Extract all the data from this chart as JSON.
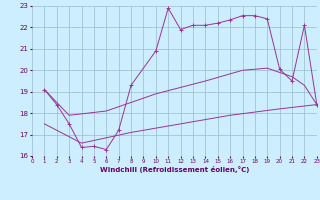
{
  "xlabel": "Windchill (Refroidissement éolien,°C)",
  "xlim": [
    0,
    23
  ],
  "ylim": [
    16,
    23
  ],
  "yticks": [
    16,
    17,
    18,
    19,
    20,
    21,
    22,
    23
  ],
  "xticks": [
    0,
    1,
    2,
    3,
    4,
    5,
    6,
    7,
    8,
    9,
    10,
    11,
    12,
    13,
    14,
    15,
    16,
    17,
    18,
    19,
    20,
    21,
    22,
    23
  ],
  "bg_color": "#cceeff",
  "line_color": "#993399",
  "grid_color": "#99bbcc",
  "line1_x": [
    1,
    2,
    3,
    4,
    5,
    6,
    7,
    8,
    10,
    11,
    12,
    13,
    14,
    15,
    16,
    17,
    18,
    19,
    20,
    21,
    22,
    23
  ],
  "line1_y": [
    19.1,
    18.4,
    17.5,
    16.4,
    16.45,
    16.3,
    17.2,
    19.3,
    20.9,
    22.9,
    21.9,
    22.1,
    22.1,
    22.2,
    22.35,
    22.55,
    22.55,
    22.4,
    20.05,
    19.5,
    22.1,
    18.4
  ],
  "line2_x": [
    1,
    3,
    6,
    10,
    14,
    17,
    19,
    21,
    22,
    23
  ],
  "line2_y": [
    19.1,
    17.9,
    18.1,
    18.9,
    19.5,
    20.0,
    20.1,
    19.7,
    19.3,
    18.4
  ],
  "line3_x": [
    1,
    4,
    8,
    12,
    16,
    20,
    23
  ],
  "line3_y": [
    17.5,
    16.6,
    17.1,
    17.5,
    17.9,
    18.2,
    18.4
  ]
}
